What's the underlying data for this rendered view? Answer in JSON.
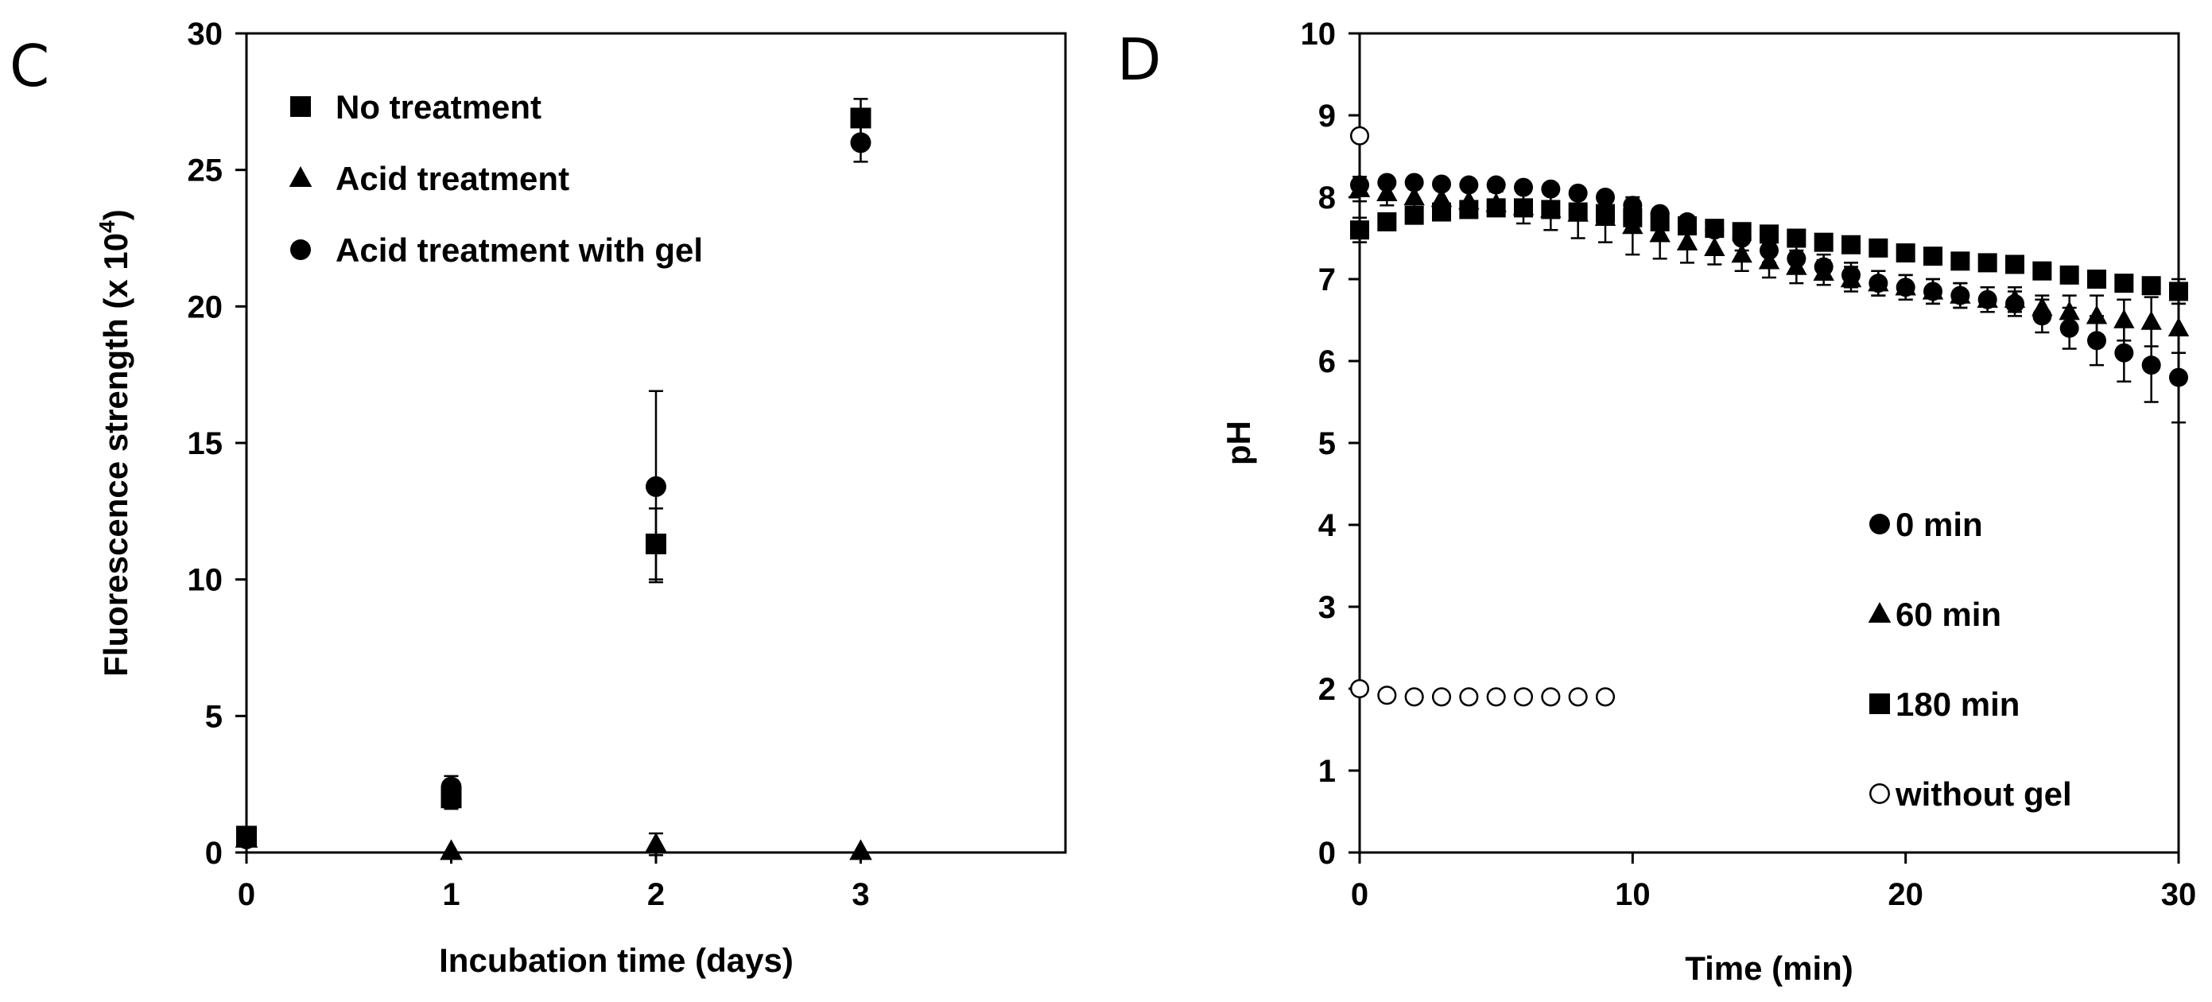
{
  "chart_data": [
    {
      "type": "scatter",
      "panel_label": "C",
      "title": "",
      "xlabel": "Incubation time (days)",
      "ylabel_main": "Fluorescence strength (x 10",
      "ylabel_sup": "4",
      "ylabel_end": ")",
      "xlim": [
        0,
        4
      ],
      "ylim": [
        0,
        30
      ],
      "xticks": [
        0,
        1,
        2,
        3
      ],
      "yticks": [
        0,
        5,
        10,
        15,
        20,
        25,
        30
      ],
      "legend_position": "top-left",
      "series": [
        {
          "name": "No treatment",
          "marker": "square",
          "points": [
            {
              "x": 0,
              "y": 0.6,
              "err": 0.3
            },
            {
              "x": 1,
              "y": 2.0,
              "err": 0.4
            },
            {
              "x": 2,
              "y": 11.3,
              "err": 1.3
            },
            {
              "x": 3,
              "y": 26.9,
              "err": 0.7
            }
          ]
        },
        {
          "name": "Acid treatment",
          "marker": "triangle",
          "points": [
            {
              "x": 0,
              "y": 0.5,
              "err": 0.2
            },
            {
              "x": 1,
              "y": 0.05,
              "err": 0.05
            },
            {
              "x": 2,
              "y": 0.3,
              "err": 0.4
            },
            {
              "x": 3,
              "y": 0.05,
              "err": 0.05
            }
          ]
        },
        {
          "name": "Acid treatment with gel",
          "marker": "circle",
          "points": [
            {
              "x": 0,
              "y": 0.5,
              "err": 0.2
            },
            {
              "x": 1,
              "y": 2.4,
              "err": 0.4
            },
            {
              "x": 2,
              "y": 13.4,
              "err": 3.5
            },
            {
              "x": 3,
              "y": 26.0,
              "err": 0.7
            }
          ]
        }
      ]
    },
    {
      "type": "scatter",
      "panel_label": "D",
      "title": "",
      "xlabel": "Time (min)",
      "ylabel": "pH",
      "xlim": [
        0,
        30
      ],
      "ylim": [
        0,
        10
      ],
      "xticks": [
        0,
        10,
        20,
        30
      ],
      "yticks": [
        0,
        1,
        2,
        3,
        4,
        5,
        6,
        7,
        8,
        9,
        10
      ],
      "legend_position": "bottom-right",
      "series": [
        {
          "name": "0 min",
          "marker": "circle",
          "x": [
            0,
            1,
            2,
            3,
            4,
            5,
            6,
            7,
            8,
            9,
            10,
            11,
            12,
            13,
            14,
            15,
            16,
            17,
            18,
            19,
            20,
            21,
            22,
            23,
            24,
            25,
            26,
            27,
            28,
            29,
            30
          ],
          "y": [
            8.15,
            8.18,
            8.18,
            8.16,
            8.15,
            8.15,
            8.12,
            8.1,
            8.05,
            8.0,
            7.9,
            7.8,
            7.7,
            7.6,
            7.5,
            7.35,
            7.25,
            7.15,
            7.05,
            6.95,
            6.9,
            6.85,
            6.8,
            6.75,
            6.7,
            6.55,
            6.4,
            6.25,
            6.1,
            5.95,
            5.8
          ],
          "err": [
            0.1,
            0.1,
            0.1,
            0.1,
            0.1,
            0.1,
            0.1,
            0.1,
            0.1,
            0.1,
            0.1,
            0.1,
            0.1,
            0.1,
            0.15,
            0.15,
            0.15,
            0.15,
            0.15,
            0.15,
            0.15,
            0.15,
            0.15,
            0.15,
            0.15,
            0.2,
            0.25,
            0.3,
            0.35,
            0.45,
            0.55
          ]
        },
        {
          "name": "60 min",
          "marker": "triangle",
          "x": [
            0,
            1,
            2,
            3,
            4,
            5,
            6,
            7,
            8,
            9,
            10,
            11,
            12,
            13,
            14,
            15,
            16,
            17,
            18,
            19,
            20,
            21,
            22,
            23,
            24,
            25,
            26,
            27,
            28,
            29,
            30
          ],
          "y": [
            8.1,
            8.05,
            8.0,
            7.98,
            7.95,
            7.92,
            7.88,
            7.85,
            7.8,
            7.75,
            7.65,
            7.55,
            7.45,
            7.38,
            7.3,
            7.22,
            7.15,
            7.08,
            7.0,
            6.95,
            6.9,
            6.85,
            6.8,
            6.75,
            6.75,
            6.65,
            6.6,
            6.55,
            6.5,
            6.48,
            6.4
          ],
          "err": [
            0.15,
            0.15,
            0.15,
            0.15,
            0.15,
            0.15,
            0.2,
            0.25,
            0.3,
            0.3,
            0.35,
            0.3,
            0.25,
            0.2,
            0.2,
            0.2,
            0.2,
            0.15,
            0.15,
            0.15,
            0.15,
            0.15,
            0.15,
            0.15,
            0.15,
            0.15,
            0.2,
            0.25,
            0.25,
            0.3,
            0.3
          ]
        },
        {
          "name": "180 min",
          "marker": "square",
          "x": [
            0,
            1,
            2,
            3,
            4,
            5,
            6,
            7,
            8,
            9,
            10,
            11,
            12,
            13,
            14,
            15,
            16,
            17,
            18,
            19,
            20,
            21,
            22,
            23,
            24,
            25,
            26,
            27,
            28,
            29,
            30
          ],
          "y": [
            7.6,
            7.7,
            7.78,
            7.82,
            7.85,
            7.87,
            7.87,
            7.85,
            7.82,
            7.8,
            7.75,
            7.7,
            7.65,
            7.62,
            7.58,
            7.55,
            7.5,
            7.45,
            7.42,
            7.38,
            7.32,
            7.28,
            7.22,
            7.2,
            7.18,
            7.1,
            7.05,
            7.0,
            6.95,
            6.92,
            6.85
          ],
          "err": [
            0.15,
            0.1,
            0.1,
            0.1,
            0.1,
            0.1,
            0.1,
            0.1,
            0.1,
            0.1,
            0.1,
            0.1,
            0.1,
            0.1,
            0.1,
            0.1,
            0.1,
            0.1,
            0.1,
            0.1,
            0.1,
            0.1,
            0.1,
            0.1,
            0.1,
            0.1,
            0.1,
            0.1,
            0.1,
            0.1,
            0.15
          ]
        },
        {
          "name": "without gel",
          "marker": "open-circle",
          "x": [
            0,
            0,
            1,
            2,
            3,
            4,
            5,
            6,
            7,
            8,
            9
          ],
          "y": [
            8.75,
            2.0,
            1.92,
            1.9,
            1.9,
            1.9,
            1.9,
            1.9,
            1.9,
            1.9,
            1.9
          ],
          "err": [
            0,
            0,
            0,
            0,
            0,
            0,
            0,
            0,
            0,
            0,
            0
          ]
        }
      ]
    }
  ]
}
